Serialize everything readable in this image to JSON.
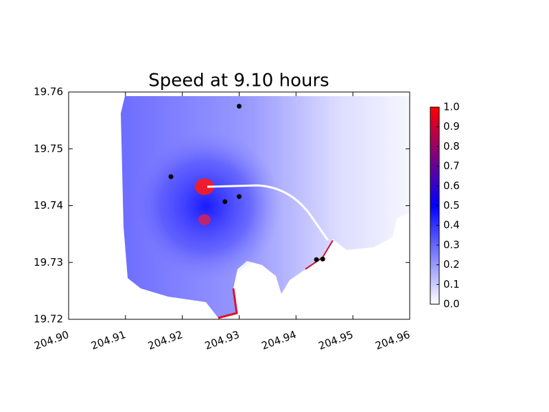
{
  "chart_data": {
    "type": "scatter",
    "title": "Speed at 9.10 hours",
    "x": [
      204.93,
      204.918,
      204.9275,
      204.93,
      204.9436,
      204.9447
    ],
    "values": [
      19.7575,
      19.7451,
      19.7407,
      19.7416,
      19.7305,
      19.7306
    ],
    "color": "#000000",
    "xlim": [
      204.9,
      204.96
    ],
    "xticks": [
      {
        "value": 204.9,
        "label": "204.90"
      },
      204.91,
      204.92,
      204.93,
      204.94,
      204.95,
      204.96
    ],
    "ylim": [
      19.72,
      19.76
    ],
    "yticks": [
      19.72,
      19.73,
      19.74,
      19.75,
      19.76
    ],
    "colorbar": {
      "lim": [
        0,
        1
      ],
      "colors": [
        "#ffffff",
        "#0000ff",
        "#ff0000"
      ],
      "ticks": [
        {
          "value": 0,
          "label": "0.0"
        },
        0.1,
        0.2,
        0.3,
        0.4,
        0.5,
        0.6,
        0.7,
        0.8,
        0.9,
        {
          "value": 1,
          "label": "1.0"
        }
      ]
    }
  }
}
